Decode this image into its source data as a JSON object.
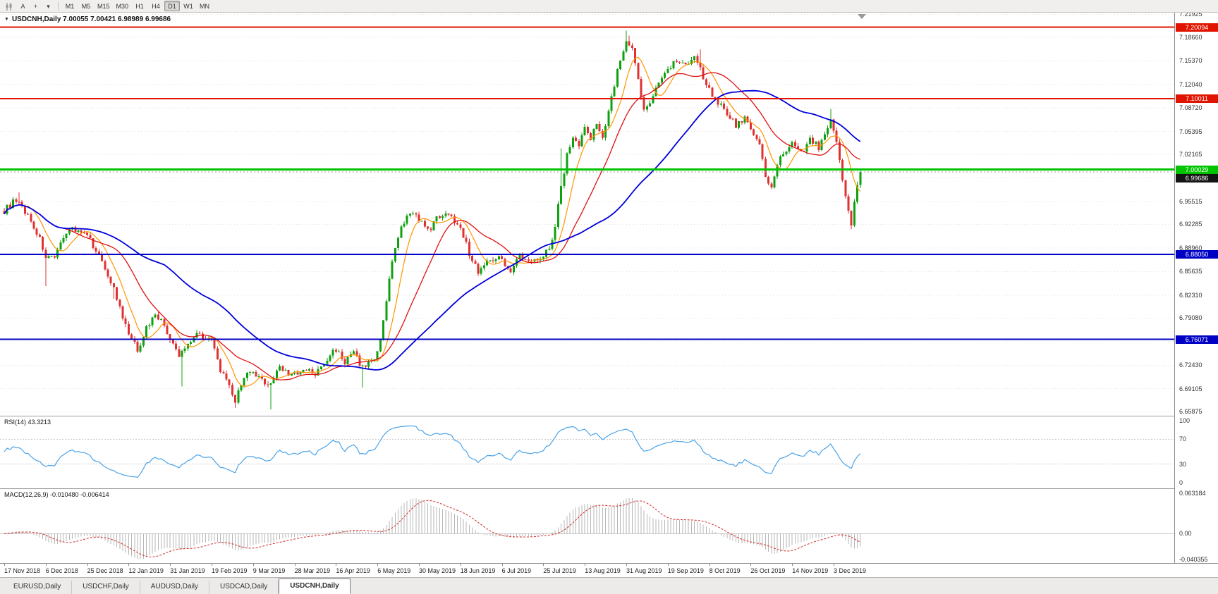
{
  "toolbar": {
    "text_tool": "A",
    "cursor_tool": "+",
    "dropdown": "▾",
    "timeframes": [
      "M1",
      "M5",
      "M15",
      "M30",
      "H1",
      "H4",
      "D1",
      "W1",
      "MN"
    ],
    "active_timeframe": "D1"
  },
  "chart": {
    "dropdown_marker": "▼",
    "symbol_ohlc": "USDCNH,Daily 7.00055 7.00421 6.98989 6.99686",
    "price_scale": [
      "7.21925",
      "7.18660",
      "7.15370",
      "7.12040",
      "7.08720",
      "7.05395",
      "7.02165",
      "6.98895",
      "6.95515",
      "6.92285",
      "6.88960",
      "6.85635",
      "6.82310",
      "6.79080",
      "6.75755",
      "6.72430",
      "6.69105",
      "6.65875"
    ],
    "hlines": [
      {
        "price": 7.20094,
        "label": "7.20094",
        "color": "#e01400",
        "width": 2
      },
      {
        "price": 7.10011,
        "label": "7.10011",
        "color": "#e01400",
        "width": 2
      },
      {
        "price": 7.00029,
        "label": "7.00029",
        "color": "#00c400",
        "width": 3
      },
      {
        "price": 6.8805,
        "label": "6.88050",
        "color": "#0000c4",
        "width": 2
      },
      {
        "price": 6.76071,
        "label": "6.76071",
        "color": "#0000c4",
        "width": 2
      }
    ],
    "bid": {
      "price": 6.99686,
      "label": "6.99686",
      "color": "#141414"
    }
  },
  "rsi": {
    "header": "RSI(14) 43.3213",
    "period": 14,
    "value": "43.3213",
    "scale": [
      "100",
      "70",
      "30",
      "0"
    ],
    "levels": [
      70,
      30
    ],
    "color": "#4aa3e8"
  },
  "macd": {
    "header": "MACD(12,26,9) -0.010480 -0.006414",
    "main_value": "-0.010480",
    "signal_value": "-0.006414",
    "scale": [
      "0.063184",
      "0.00",
      "-0.040355"
    ],
    "hist_color": "#b6b6b6",
    "signal_color": "#d43c3c"
  },
  "time_axis": [
    "17 Nov 2018",
    "6 Dec 2018",
    "25 Dec 2018",
    "12 Jan 2019",
    "31 Jan 2019",
    "19 Feb 2019",
    "9 Mar 2019",
    "28 Mar 2019",
    "16 Apr 2019",
    "6 May 2019",
    "30 May 2019",
    "18 Jun 2019",
    "6 Jul 2019",
    "25 Jul 2019",
    "13 Aug 2019",
    "31 Aug 2019",
    "19 Sep 2019",
    "8 Oct 2019",
    "26 Oct 2019",
    "14 Nov 2019",
    "3 Dec 2019"
  ],
  "tabs": {
    "items": [
      "EURUSD,Daily",
      "USDCHF,Daily",
      "AUDUSD,Daily",
      "USDCAD,Daily",
      "USDCNH,Daily"
    ],
    "active": "USDCNH,Daily"
  },
  "chart_data": {
    "type": "candlestick",
    "symbol": "USDCNH",
    "timeframe": "Daily",
    "title": "USDCNH Daily with RSI(14) and MACD(12,26,9)",
    "bars": 290,
    "bar_step": 4.2,
    "price_range": [
      6.653,
      7.2215
    ],
    "noise": 0.009,
    "last_close": 6.99686,
    "ohlc_current": {
      "open": 7.00055,
      "high": 7.00421,
      "low": 6.98989,
      "close": 6.99686
    },
    "keypoints": [
      [
        0,
        6.942
      ],
      [
        3,
        6.955
      ],
      [
        6,
        6.948
      ],
      [
        9,
        6.928
      ],
      [
        12,
        6.902
      ],
      [
        14,
        6.878
      ],
      [
        17,
        6.872
      ],
      [
        20,
        6.908
      ],
      [
        23,
        6.918
      ],
      [
        26,
        6.912
      ],
      [
        28,
        6.905
      ],
      [
        31,
        6.888
      ],
      [
        34,
        6.862
      ],
      [
        37,
        6.832
      ],
      [
        40,
        6.79
      ],
      [
        42,
        6.768
      ],
      [
        45,
        6.746
      ],
      [
        48,
        6.776
      ],
      [
        51,
        6.798
      ],
      [
        54,
        6.78
      ],
      [
        56,
        6.76
      ],
      [
        59,
        6.737
      ],
      [
        62,
        6.755
      ],
      [
        65,
        6.77
      ],
      [
        68,
        6.764
      ],
      [
        70,
        6.758
      ],
      [
        73,
        6.718
      ],
      [
        76,
        6.692
      ],
      [
        78,
        6.673
      ],
      [
        81,
        6.71
      ],
      [
        84,
        6.712
      ],
      [
        87,
        6.702
      ],
      [
        90,
        6.698
      ],
      [
        93,
        6.723
      ],
      [
        96,
        6.713
      ],
      [
        99,
        6.71
      ],
      [
        102,
        6.718
      ],
      [
        105,
        6.711
      ],
      [
        108,
        6.726
      ],
      [
        110,
        6.738
      ],
      [
        112,
        6.748
      ],
      [
        115,
        6.728
      ],
      [
        118,
        6.742
      ],
      [
        121,
        6.72
      ],
      [
        124,
        6.732
      ],
      [
        126,
        6.74
      ],
      [
        128,
        6.79
      ],
      [
        130,
        6.845
      ],
      [
        132,
        6.888
      ],
      [
        134,
        6.916
      ],
      [
        136,
        6.932
      ],
      [
        138,
        6.942
      ],
      [
        140,
        6.93
      ],
      [
        143,
        6.913
      ],
      [
        146,
        6.931
      ],
      [
        149,
        6.941
      ],
      [
        152,
        6.928
      ],
      [
        154,
        6.922
      ],
      [
        157,
        6.881
      ],
      [
        160,
        6.857
      ],
      [
        163,
        6.87
      ],
      [
        166,
        6.878
      ],
      [
        168,
        6.872
      ],
      [
        171,
        6.859
      ],
      [
        174,
        6.878
      ],
      [
        177,
        6.869
      ],
      [
        180,
        6.876
      ],
      [
        182,
        6.881
      ],
      [
        184,
        6.889
      ],
      [
        186,
        6.921
      ],
      [
        188,
        6.976
      ],
      [
        190,
        7.021
      ],
      [
        192,
        7.046
      ],
      [
        194,
        7.036
      ],
      [
        196,
        7.059
      ],
      [
        198,
        7.043
      ],
      [
        200,
        7.064
      ],
      [
        202,
        7.049
      ],
      [
        204,
        7.083
      ],
      [
        206,
        7.121
      ],
      [
        208,
        7.156
      ],
      [
        210,
        7.178
      ],
      [
        212,
        7.168
      ],
      [
        214,
        7.126
      ],
      [
        216,
        7.083
      ],
      [
        218,
        7.098
      ],
      [
        220,
        7.113
      ],
      [
        222,
        7.131
      ],
      [
        224,
        7.143
      ],
      [
        227,
        7.156
      ],
      [
        230,
        7.149
      ],
      [
        233,
        7.161
      ],
      [
        236,
        7.131
      ],
      [
        238,
        7.113
      ],
      [
        241,
        7.096
      ],
      [
        244,
        7.079
      ],
      [
        247,
        7.063
      ],
      [
        250,
        7.072
      ],
      [
        252,
        7.059
      ],
      [
        255,
        7.036
      ],
      [
        257,
        6.989
      ],
      [
        259,
        6.973
      ],
      [
        261,
        7.006
      ],
      [
        263,
        7.023
      ],
      [
        266,
        7.036
      ],
      [
        269,
        7.023
      ],
      [
        272,
        7.043
      ],
      [
        275,
        7.031
      ],
      [
        277,
        7.053
      ],
      [
        279,
        7.068
      ],
      [
        281,
        7.036
      ],
      [
        283,
        6.986
      ],
      [
        285,
        6.939
      ],
      [
        286,
        6.926
      ],
      [
        287,
        6.956
      ],
      [
        288,
        6.976
      ],
      [
        289,
        6.99686
      ]
    ],
    "wick_overrides": [
      [
        5,
        "h",
        6.968
      ],
      [
        14,
        "l",
        6.836
      ],
      [
        37,
        "l",
        6.818
      ],
      [
        60,
        "l",
        6.694
      ],
      [
        78,
        "l",
        6.664
      ],
      [
        90,
        "l",
        6.662
      ],
      [
        121,
        "l",
        6.693
      ],
      [
        188,
        "h",
        7.03
      ],
      [
        210,
        "h",
        7.196
      ],
      [
        211,
        "h",
        7.189
      ],
      [
        235,
        "h",
        7.17
      ],
      [
        279,
        "h",
        7.086
      ],
      [
        286,
        "l",
        6.916
      ]
    ],
    "up_color": "#0fa00f",
    "down_color": "#e03131",
    "ma_fast": {
      "period": 8,
      "color": "#ff9500"
    },
    "ma_mid": {
      "period": 21,
      "color": "#e01010"
    },
    "ma_slow": {
      "period": 55,
      "color": "#0000dd"
    },
    "macd_range": [
      -0.046,
      0.07
    ]
  }
}
